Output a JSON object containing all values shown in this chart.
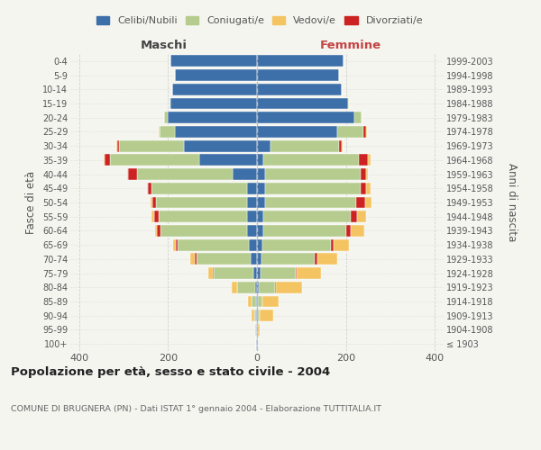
{
  "age_groups": [
    "100+",
    "95-99",
    "90-94",
    "85-89",
    "80-84",
    "75-79",
    "70-74",
    "65-69",
    "60-64",
    "55-59",
    "50-54",
    "45-49",
    "40-44",
    "35-39",
    "30-34",
    "25-29",
    "20-24",
    "15-19",
    "10-14",
    "5-9",
    "0-4"
  ],
  "birth_years": [
    "≤ 1903",
    "1904-1908",
    "1909-1913",
    "1914-1918",
    "1919-1923",
    "1924-1928",
    "1929-1933",
    "1934-1938",
    "1939-1943",
    "1944-1948",
    "1949-1953",
    "1954-1958",
    "1959-1963",
    "1964-1968",
    "1969-1973",
    "1974-1978",
    "1979-1983",
    "1984-1988",
    "1989-1993",
    "1994-1998",
    "1999-2003"
  ],
  "colors": {
    "celibi": "#3d6fa8",
    "coniugati": "#b5cc8e",
    "vedovi": "#f5c462",
    "divorziati": "#cc2222"
  },
  "maschi": {
    "celibi": [
      2,
      2,
      2,
      3,
      5,
      8,
      15,
      18,
      22,
      22,
      22,
      22,
      55,
      130,
      165,
      185,
      200,
      195,
      190,
      185,
      195
    ],
    "coniugati": [
      0,
      0,
      5,
      10,
      40,
      90,
      120,
      160,
      195,
      200,
      205,
      215,
      215,
      200,
      145,
      35,
      10,
      2,
      0,
      0,
      0
    ],
    "vedovi": [
      0,
      2,
      5,
      8,
      12,
      10,
      10,
      5,
      5,
      5,
      5,
      3,
      2,
      2,
      2,
      2,
      0,
      0,
      0,
      0,
      0
    ],
    "divorziati": [
      0,
      0,
      0,
      0,
      0,
      2,
      5,
      5,
      8,
      10,
      8,
      8,
      20,
      12,
      5,
      0,
      0,
      0,
      0,
      0,
      0
    ]
  },
  "femmine": {
    "nubili": [
      2,
      2,
      2,
      3,
      5,
      8,
      10,
      12,
      15,
      15,
      18,
      18,
      18,
      15,
      30,
      180,
      220,
      205,
      190,
      185,
      195
    ],
    "coniugate": [
      0,
      0,
      5,
      10,
      35,
      80,
      120,
      155,
      185,
      195,
      205,
      215,
      215,
      215,
      155,
      60,
      15,
      2,
      0,
      0,
      0
    ],
    "vedove": [
      0,
      5,
      30,
      35,
      60,
      55,
      45,
      35,
      30,
      20,
      15,
      10,
      5,
      5,
      3,
      2,
      0,
      0,
      0,
      0,
      0
    ],
    "divorziate": [
      0,
      0,
      0,
      0,
      2,
      2,
      5,
      5,
      12,
      15,
      20,
      12,
      12,
      20,
      5,
      5,
      0,
      0,
      0,
      0,
      0
    ]
  },
  "xlim": 420,
  "title": "Popolazione per età, sesso e stato civile - 2004",
  "subtitle": "COMUNE DI BRUGNERA (PN) - Dati ISTAT 1° gennaio 2004 - Elaborazione TUTTITALIA.IT",
  "ylabel_left": "Fasce di età",
  "ylabel_right": "Anni di nascita",
  "xlabel_left": "Maschi",
  "xlabel_right": "Femmine",
  "legend_labels": [
    "Celibi/Nubili",
    "Coniugati/e",
    "Vedovi/e",
    "Divorziati/e"
  ],
  "bg_color": "#f5f5f0",
  "text_color": "#555555",
  "maschi_color": "#444444",
  "femmine_color": "#c44444"
}
